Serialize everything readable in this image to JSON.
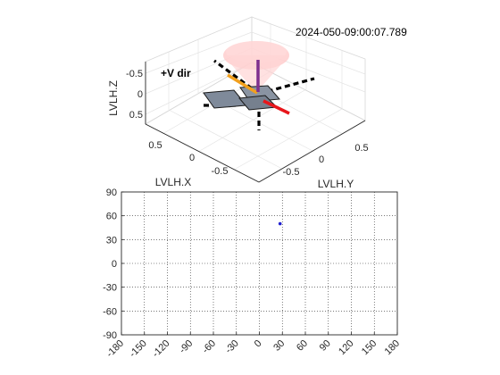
{
  "figure": {
    "timestamp": "2024-050-09:00:07.789"
  },
  "top_panel": {
    "annotation": "+V dir",
    "xlabel": "LVLH.X",
    "ylabel": "LVLH.Y",
    "zlabel": "LVLH.Z",
    "x_ticks": [
      "0.5",
      "0",
      "-0.5"
    ],
    "y_ticks": [
      "-0.5",
      "0",
      "0.5"
    ],
    "z_ticks": [
      "-0.5",
      "0",
      "0.5"
    ],
    "colors": {
      "x_axis_vector": "#e8161b",
      "y_axis_vector": "#f2a01d",
      "z_axis_vector": "#7e2f8e",
      "body": "#7f8a9a",
      "cone": "#ffc7c7",
      "dashed_axes": "#000000"
    }
  },
  "chart_data": {
    "type": "scatter",
    "xlim": [
      -180,
      180
    ],
    "ylim": [
      -90,
      90
    ],
    "x_ticks": [
      -180,
      -150,
      -120,
      -90,
      -60,
      -30,
      0,
      30,
      60,
      90,
      120,
      150,
      180
    ],
    "y_ticks": [
      -90,
      -60,
      -30,
      0,
      30,
      60,
      90
    ],
    "grid": true,
    "points": [
      {
        "x": 27,
        "y": 50
      }
    ],
    "point_color": "#1f1fd0"
  }
}
